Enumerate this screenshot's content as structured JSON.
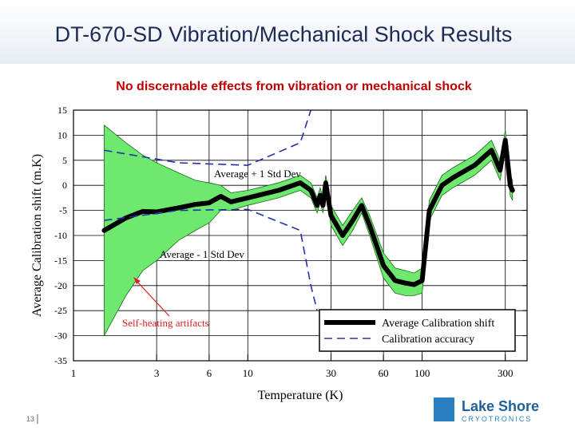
{
  "chart_data": {
    "type": "line",
    "title": "DT-670-SD Vibration/Mechanical Shock Results",
    "subtitle": "No discernable effects from vibration or mechanical shock",
    "x_label": "Temperature (K)",
    "y_label": "Average Calibration shift (m.K)",
    "xscale": "log",
    "xlim": [
      1,
      400
    ],
    "xticks": [
      1,
      3,
      6,
      10,
      30,
      60,
      100,
      300
    ],
    "ylim": [
      -35,
      15
    ],
    "yticks": [
      15,
      10,
      5,
      0,
      -5,
      -10,
      -15,
      -20,
      -25,
      -30,
      -35
    ],
    "grid": true,
    "band": {
      "color": "#6ee86e",
      "x": [
        1.5,
        2,
        2.5,
        3,
        4,
        5,
        6,
        7,
        8,
        10,
        15,
        20,
        23,
        25,
        26,
        27,
        28,
        30,
        35,
        40,
        45,
        50,
        60,
        70,
        80,
        90,
        100,
        110,
        130,
        150,
        200,
        250,
        280,
        300,
        320,
        330
      ],
      "upper": [
        12,
        8.5,
        6,
        4.5,
        2.5,
        1,
        0.5,
        0,
        -1.5,
        -1,
        0.5,
        2,
        0.5,
        -2.5,
        -0.5,
        -2.5,
        2,
        -4,
        -8,
        -5,
        -2.5,
        -6,
        -13.5,
        -16.5,
        -17,
        -17.5,
        -16.5,
        -3,
        2,
        3.5,
        6,
        9,
        5,
        11,
        2,
        1
      ],
      "lower": [
        -30,
        -22,
        -17,
        -15,
        -11,
        -9,
        -7.5,
        -5,
        -5,
        -4,
        -2.5,
        -1,
        -2.5,
        -5.5,
        -3.5,
        -5.5,
        -1,
        -8,
        -12,
        -9,
        -5.5,
        -10,
        -18.5,
        -21.5,
        -22,
        -22,
        -21.5,
        -7,
        -2,
        -0.5,
        2,
        5,
        1,
        7,
        -2,
        -3
      ]
    },
    "series": [
      {
        "name": "Average Calibration shift",
        "color": "#000000",
        "style": "solid",
        "x": [
          1.5,
          2,
          2.5,
          3,
          4,
          5,
          6,
          7,
          8,
          10,
          15,
          20,
          23,
          25,
          26,
          27,
          28,
          30,
          35,
          40,
          45,
          50,
          60,
          70,
          80,
          90,
          100,
          110,
          130,
          150,
          200,
          250,
          280,
          300,
          320,
          330
        ],
        "values": [
          -9,
          -6.5,
          -5.2,
          -5.3,
          -4.5,
          -3.8,
          -3.5,
          -2.2,
          -3.3,
          -2.5,
          -1,
          0.5,
          -1,
          -4,
          -2,
          -4,
          0.5,
          -6,
          -10,
          -7,
          -4,
          -8,
          -16,
          -19,
          -19.5,
          -19.8,
          -19,
          -5,
          0,
          1.5,
          4,
          7,
          3,
          9,
          0,
          -1
        ]
      },
      {
        "name": "Calibration accuracy",
        "color": "#2233aa",
        "style": "dashed",
        "x": [
          1.5,
          4,
          10,
          20,
          23,
          25
        ],
        "upper": [
          7,
          4.5,
          4,
          8.5,
          15,
          null
        ],
        "lower": [
          -7,
          -5,
          -4.8,
          -9,
          -20,
          -25
        ]
      }
    ],
    "annotations": [
      "Average + 1 Std Dev",
      "Average - 1 Std Dev",
      "Self-heating artifacts"
    ]
  },
  "footer": {
    "slide_number": "13",
    "logo": "Lake Shore",
    "logo_tagline": "CRYOTRONICS"
  }
}
